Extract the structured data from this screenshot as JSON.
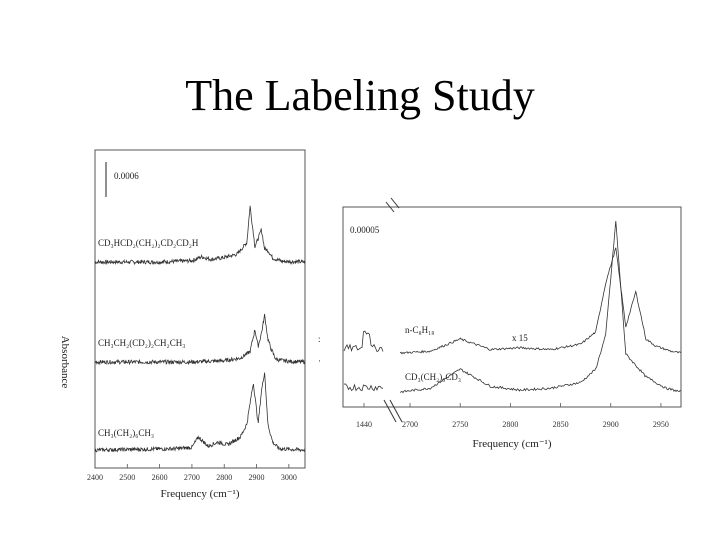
{
  "slide": {
    "title": "The Labeling Study"
  },
  "chart_data": [
    {
      "type": "line",
      "title": "",
      "xlabel": "Frequency (cm⁻¹)",
      "ylabel": "Absorbance",
      "xlim": [
        2400,
        3050
      ],
      "x_ticks": [
        "2400",
        "2500",
        "2600",
        "2700",
        "2800",
        "2900",
        "3000"
      ],
      "scale_bar_label": "0.0006",
      "grid": false,
      "series": [
        {
          "name": "CD₃HCD₂(CH₂)₂CD₂CD₂H",
          "label_pos": "upper-left",
          "x": [
            2400,
            2600,
            2700,
            2730,
            2760,
            2800,
            2840,
            2870,
            2880,
            2895,
            2905,
            2915,
            2925,
            2935,
            2950,
            2980,
            3050
          ],
          "y": [
            0.0,
            0.0,
            0.01,
            0.04,
            0.02,
            0.035,
            0.06,
            0.15,
            0.43,
            0.12,
            0.18,
            0.25,
            0.1,
            0.09,
            0.03,
            0.005,
            0.0
          ]
        },
        {
          "name": "CH₃CH₂(CD₂)₂CH₂CH₃",
          "label_pos": "upper-left",
          "x": [
            2400,
            2700,
            2800,
            2850,
            2880,
            2895,
            2905,
            2915,
            2925,
            2935,
            2945,
            2960,
            3000,
            3050
          ],
          "y": [
            0.0,
            0.0,
            0.01,
            0.03,
            0.08,
            0.25,
            0.12,
            0.22,
            0.36,
            0.18,
            0.1,
            0.02,
            0.005,
            0.0
          ]
        },
        {
          "name": "CH₃(CH₂)₆CH₃",
          "label_pos": "upper-left",
          "x": [
            2400,
            2650,
            2700,
            2720,
            2750,
            2780,
            2810,
            2850,
            2870,
            2890,
            2905,
            2915,
            2925,
            2935,
            2950,
            2970,
            3050
          ],
          "y": [
            0.0,
            0.01,
            0.02,
            0.1,
            0.03,
            0.06,
            0.04,
            0.1,
            0.2,
            0.52,
            0.2,
            0.45,
            0.6,
            0.2,
            0.06,
            0.01,
            0.0
          ]
        }
      ]
    },
    {
      "type": "line",
      "title": "",
      "xlabel": "Frequency (cm⁻¹)",
      "ylabel": "",
      "xlim": [
        2650,
        2970
      ],
      "x_ticks": [
        "1440",
        "2700",
        "2750",
        "2800",
        "2850",
        "2900",
        "2950"
      ],
      "scale_bar_label": "0.00005",
      "multiplier_label": "x 15",
      "grid": false,
      "series": [
        {
          "name": "n-C₈H₁₈",
          "label_pos": "upper-left",
          "x": [
            2690,
            2720,
            2750,
            2780,
            2810,
            2840,
            2870,
            2885,
            2895,
            2905,
            2915,
            2925,
            2935,
            2945,
            2960,
            2970
          ],
          "y": [
            0.0,
            0.01,
            0.08,
            0.02,
            0.03,
            0.02,
            0.05,
            0.12,
            0.4,
            0.6,
            0.15,
            0.35,
            0.08,
            0.04,
            0.01,
            0.0
          ]
        },
        {
          "name": "CD₃(CH₂)₆CD₃",
          "label_pos": "upper-left",
          "x": [
            2690,
            2720,
            2750,
            2780,
            2810,
            2840,
            2870,
            2885,
            2895,
            2905,
            2915,
            2935,
            2955,
            2970
          ],
          "y": [
            0.0,
            0.02,
            0.12,
            0.03,
            0.01,
            0.02,
            0.05,
            0.12,
            0.3,
            0.9,
            0.2,
            0.08,
            0.02,
            0.0
          ]
        }
      ]
    }
  ]
}
